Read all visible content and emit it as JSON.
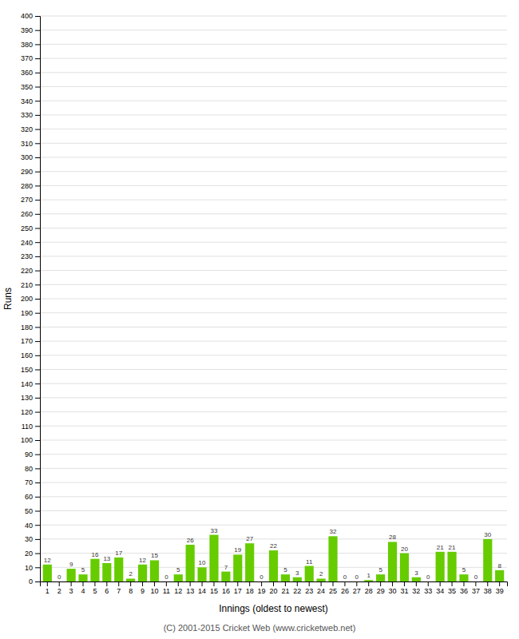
{
  "chart_data": {
    "type": "bar",
    "categories": [
      "1",
      "2",
      "3",
      "4",
      "5",
      "6",
      "7",
      "8",
      "9",
      "10",
      "11",
      "12",
      "13",
      "14",
      "15",
      "16",
      "17",
      "18",
      "19",
      "20",
      "21",
      "22",
      "23",
      "24",
      "25",
      "26",
      "27",
      "28",
      "29",
      "30",
      "31",
      "32",
      "33",
      "34",
      "35",
      "36",
      "37",
      "38",
      "39"
    ],
    "values": [
      12,
      0,
      9,
      5,
      16,
      13,
      17,
      2,
      12,
      15,
      0,
      5,
      26,
      10,
      33,
      7,
      19,
      27,
      0,
      22,
      5,
      3,
      11,
      2,
      32,
      0,
      0,
      1,
      5,
      28,
      20,
      3,
      0,
      21,
      21,
      5,
      0,
      30,
      8
    ],
    "color": "#66cc00",
    "xlabel": "Innings (oldest to newest)",
    "ylabel": "Runs",
    "ylim": [
      0,
      400
    ],
    "yticks": [
      0,
      10,
      20,
      30,
      40,
      50,
      60,
      70,
      80,
      90,
      100,
      110,
      120,
      130,
      140,
      150,
      160,
      170,
      180,
      190,
      200,
      210,
      220,
      230,
      240,
      250,
      260,
      270,
      280,
      290,
      300,
      310,
      320,
      330,
      340,
      350,
      360,
      370,
      380,
      390,
      400
    ],
    "grid": true,
    "data_labels": true,
    "footer": "(C) 2001-2015 Cricket Web (www.cricketweb.net)"
  }
}
